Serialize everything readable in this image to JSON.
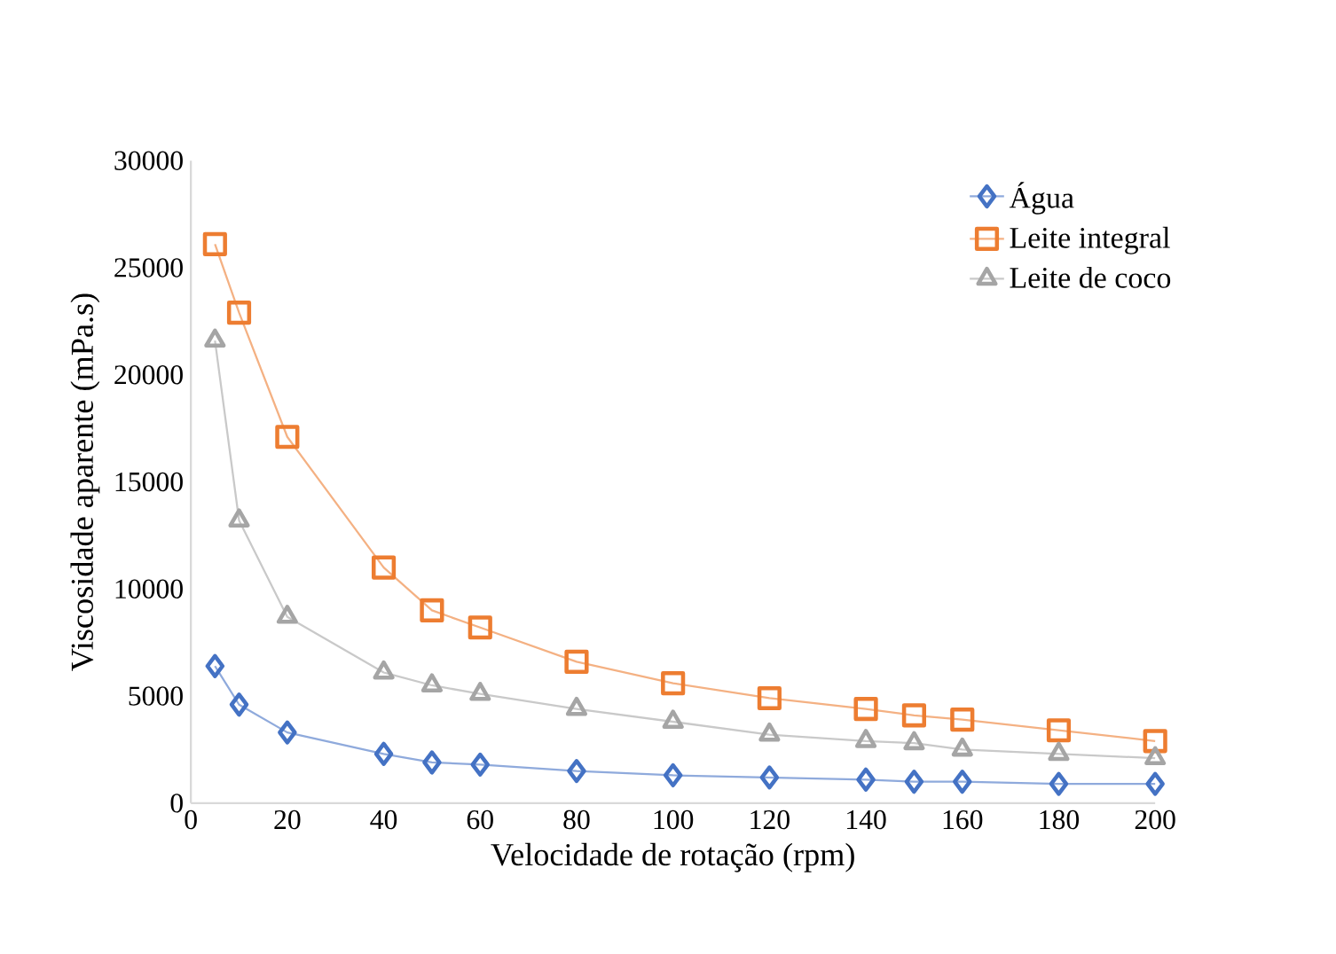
{
  "chart_data": {
    "type": "line",
    "xlabel": "Velocidade de rotação (rpm)",
    "ylabel": "Viscosidade aparente (mPa.s)",
    "x": [
      5,
      10,
      20,
      40,
      50,
      60,
      80,
      100,
      120,
      140,
      150,
      160,
      180,
      200
    ],
    "series": [
      {
        "name": "Água",
        "color": "#4472c4",
        "marker": "diamond",
        "values": [
          6400,
          4600,
          3300,
          2300,
          1900,
          1800,
          1500,
          1300,
          1200,
          1100,
          1000,
          1000,
          900,
          900
        ]
      },
      {
        "name": "Leite integral",
        "color": "#ed7d31",
        "marker": "square",
        "values": [
          26100,
          22900,
          17100,
          11000,
          9000,
          8200,
          6600,
          5600,
          4900,
          4400,
          4100,
          3900,
          3400,
          2900
        ]
      },
      {
        "name": "Leite de coco",
        "color": "#a5a5a5",
        "marker": "triangle",
        "values": [
          21600,
          13200,
          8700,
          6100,
          5500,
          5100,
          4400,
          3800,
          3200,
          2900,
          2800,
          2500,
          2300,
          2100
        ]
      }
    ],
    "xlim": [
      0,
      200
    ],
    "xticks": [
      0,
      20,
      40,
      60,
      80,
      100,
      120,
      140,
      160,
      180,
      200
    ],
    "ylim": [
      0,
      30000
    ],
    "yticks": [
      0,
      5000,
      10000,
      15000,
      20000,
      25000,
      30000
    ],
    "grid": false,
    "legend": "top right",
    "line_style": "solid"
  }
}
